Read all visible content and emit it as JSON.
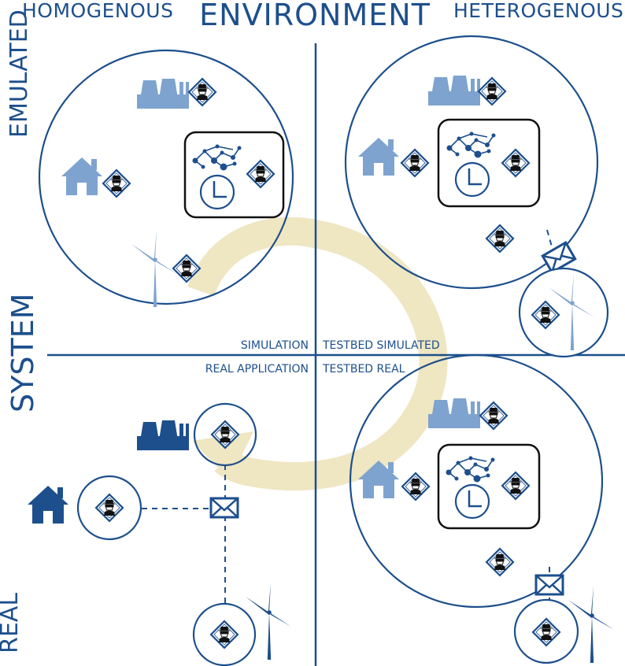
{
  "title": "ENVIRONMENT",
  "top_left_label": "HOMOGENOUS",
  "top_right_label": "HETEROGENOUS",
  "left_top_label": "EMULATED",
  "left_middle_label": "SYSTEM",
  "left_bottom_label": "REAL",
  "quadrants": {
    "top_left": "SIMULATION",
    "top_right": "TESTBED SIMULATED",
    "bottom_left": "REAL APPLICATION",
    "bottom_right": "TESTBED REAL"
  },
  "colors": {
    "dark_blue": "#1d4f8c",
    "light_blue": "#7ea3cf",
    "cycle_arrow": "#efe6c2",
    "black": "#111111"
  },
  "icons": [
    "power-plant-icon",
    "house-icon",
    "wind-turbine-icon",
    "agent-icon",
    "network-icon",
    "clock-icon",
    "envelope-icon"
  ]
}
